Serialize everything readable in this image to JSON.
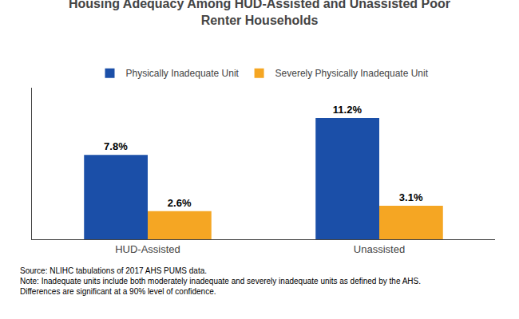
{
  "chart_data": {
    "type": "bar",
    "title": "Housing Adequacy Among HUD-Assisted and Unassisted Poor\nRenter Households",
    "categories": [
      "HUD-Assisted",
      "Unassisted"
    ],
    "series": [
      {
        "name": "Physically Inadequate Unit",
        "color": "#1B4FA8",
        "values": [
          7.8,
          11.2
        ],
        "value_labels": [
          "7.8%",
          "11.2%"
        ]
      },
      {
        "name": "Severely Physically Inadequate Unit",
        "color": "#F5A623",
        "values": [
          2.6,
          3.1
        ],
        "value_labels": [
          "2.6%",
          "3.1%"
        ]
      }
    ],
    "ylim": [
      0,
      14
    ],
    "yticks": [],
    "tick_labels": "x",
    "grid": false,
    "legend": "top",
    "data_labels": true,
    "annotations": [
      "Source: NLIHC tabulations of 2017 AHS PUMS data.\nNote: Inadequate units include both moderately inadequate and severely inadequate units as defined by the AHS.\nDifferences are significant at a 90% level of confidence."
    ]
  }
}
